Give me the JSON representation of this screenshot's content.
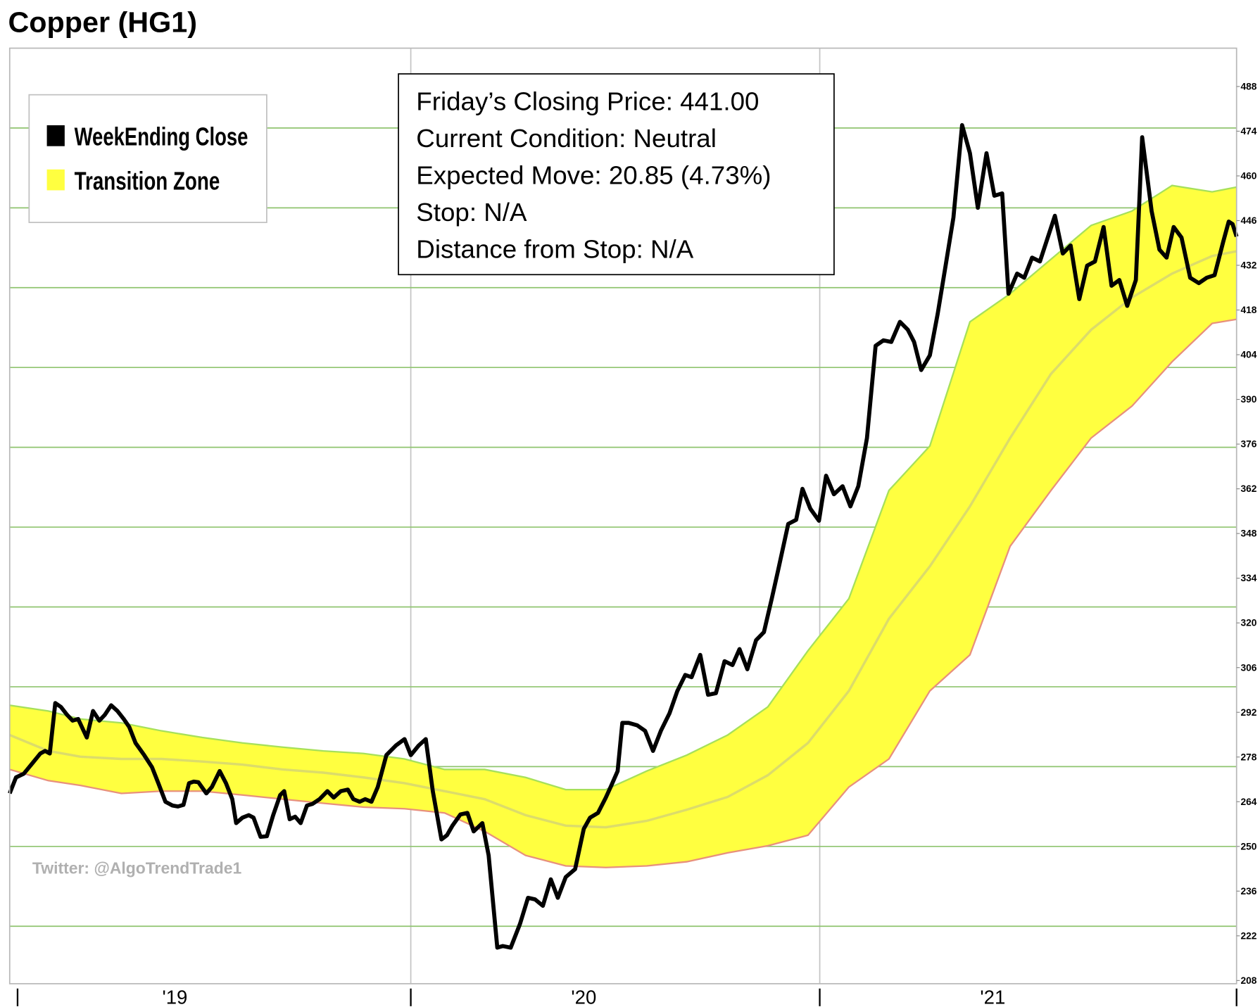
{
  "chart_data": {
    "type": "line",
    "title": "Copper (HG1)",
    "xlim": [
      0,
      156
    ],
    "ylim": [
      207,
      500
    ],
    "yticks": [
      208,
      222,
      236,
      250,
      264,
      278,
      292,
      306,
      320,
      334,
      348,
      362,
      376,
      390,
      404,
      418,
      432,
      446,
      460,
      474,
      488
    ],
    "ygrid": [
      225,
      250,
      275,
      300,
      325,
      350,
      375,
      400,
      425,
      450,
      475
    ],
    "grid_color": "#8fc46f",
    "xticks": [
      {
        "value": 21,
        "label": "'19"
      },
      {
        "value": 73,
        "label": "'20"
      },
      {
        "value": 125,
        "label": "'21"
      }
    ],
    "xgrid": [
      51,
      103
    ],
    "xtickmarks": [
      1,
      51,
      103,
      156
    ],
    "series": [
      {
        "name": "WeekEnding Close",
        "color": "#000000",
        "x": [
          0,
          0.8,
          1.8,
          2.9,
          3.9,
          4.5,
          5.1,
          5.8,
          6.5,
          7.3,
          8.0,
          8.7,
          9.8,
          10.6,
          11.4,
          12.1,
          12.9,
          13.7,
          14.5,
          15.2,
          16.0,
          17.1,
          18.1,
          18.9,
          19.8,
          20.7,
          21.4,
          22.1,
          22.8,
          23.4,
          24.0,
          25.0,
          25.7,
          26.7,
          27.5,
          28.3,
          28.8,
          29.6,
          30.4,
          31.0,
          31.9,
          32.7,
          33.5,
          34.4,
          34.9,
          35.6,
          36.3,
          37.0,
          37.8,
          38.5,
          39.4,
          40.4,
          41.2,
          42.1,
          43.0,
          43.7,
          44.5,
          45.2,
          46.0,
          46.8,
          47.9,
          49.1,
          50.2,
          51.0,
          52.0,
          52.9,
          53.8,
          54.9,
          55.6,
          56.3,
          57.3,
          58.2,
          59.0,
          60.1,
          60.9,
          62.0,
          62.7,
          63.7,
          64.9,
          65.9,
          66.8,
          67.8,
          68.8,
          69.7,
          70.7,
          71.9,
          73.0,
          73.8,
          74.8,
          75.8,
          76.5,
          77.3,
          77.9,
          78.7,
          79.8,
          80.8,
          81.8,
          82.8,
          83.9,
          84.9,
          85.9,
          86.7,
          87.8,
          88.8,
          89.8,
          90.9,
          91.9,
          92.8,
          93.8,
          94.9,
          95.9,
          96.9,
          97.7,
          99.0,
          100.0,
          100.8,
          101.8,
          102.9,
          103.8,
          104.8,
          105.9,
          106.9,
          107.9,
          109.0,
          110.1,
          111.1,
          112.1,
          113.2,
          114.2,
          115.0,
          115.9,
          117.0,
          118.0,
          119.0,
          120.0,
          121.1,
          122.1,
          123.1,
          124.2,
          125.2,
          126.2,
          127.0,
          128.1,
          129.0,
          130.0,
          131.0,
          132.9,
          133.9,
          134.9,
          136.0,
          137.0,
          138.0,
          139.1,
          140.1,
          141.1,
          142.1,
          143.2,
          144.0,
          145.2,
          146.2,
          147.1,
          148.0,
          149.0,
          150.1,
          151.2,
          152.2,
          153.2,
          154.3,
          155.0,
          155.5,
          156.0
        ],
        "values": [
          266.6,
          271.6,
          272.8,
          276.1,
          279.1,
          279.9,
          279.1,
          294.9,
          293.7,
          291.2,
          289.4,
          289.9,
          284.1,
          292.4,
          289.4,
          291.2,
          294.2,
          292.4,
          289.9,
          287.4,
          282.4,
          278.6,
          274.8,
          269.8,
          264.0,
          262.8,
          262.5,
          263.0,
          269.8,
          270.3,
          270.1,
          266.6,
          268.6,
          273.6,
          269.8,
          264.8,
          257.3,
          259.0,
          259.8,
          259.0,
          253.0,
          253.2,
          259.8,
          266.1,
          267.3,
          258.5,
          259.3,
          257.3,
          262.8,
          263.3,
          264.8,
          267.3,
          265.3,
          267.3,
          267.8,
          264.8,
          264.0,
          264.8,
          264.0,
          268.6,
          278.6,
          281.6,
          283.6,
          278.6,
          281.6,
          283.6,
          267.3,
          252.2,
          253.5,
          256.5,
          260.0,
          260.5,
          254.7,
          257.3,
          247.2,
          218.3,
          218.8,
          218.3,
          225.8,
          233.9,
          233.4,
          231.4,
          239.7,
          233.9,
          240.4,
          242.9,
          255.5,
          259.0,
          260.5,
          265.3,
          269.1,
          273.6,
          288.7,
          288.7,
          287.9,
          286.2,
          279.9,
          286.2,
          291.7,
          298.7,
          303.7,
          303.0,
          310.0,
          297.5,
          298.0,
          308.0,
          306.8,
          311.8,
          305.5,
          314.6,
          317.1,
          327.6,
          336.4,
          351.0,
          352.3,
          362.0,
          355.8,
          352.0,
          366.1,
          360.3,
          362.8,
          356.5,
          362.8,
          377.9,
          406.8,
          408.5,
          408.0,
          414.3,
          411.8,
          408.0,
          399.2,
          403.8,
          416.8,
          431.9,
          447.0,
          475.9,
          467.1,
          450.0,
          467.1,
          453.8,
          454.5,
          423.1,
          429.4,
          428.1,
          434.4,
          433.2,
          447.5,
          435.7,
          438.2,
          421.4,
          431.9,
          433.2,
          444.0,
          425.6,
          427.4,
          419.3,
          427.4,
          472.1,
          449.0,
          436.9,
          434.4,
          444.0,
          440.7,
          428.1,
          426.4,
          428.1,
          428.9,
          439.4,
          445.7,
          444.9,
          441.0
        ]
      },
      {
        "name": "Transition Zone",
        "type": "band",
        "color": "#ffff40",
        "upper_color": "#a6e05a",
        "lower_color": "#e8907c",
        "middle_color": "#dcdc6a",
        "x": [
          0,
          4.9,
          9.0,
          14.2,
          19.3,
          24.5,
          29.6,
          34.7,
          39.9,
          45.0,
          50.2,
          55.3,
          60.4,
          65.6,
          70.7,
          75.8,
          81.0,
          86.1,
          91.3,
          96.4,
          101.5,
          106.7,
          111.8,
          117.0,
          122.1,
          127.2,
          132.4,
          137.5,
          142.7,
          147.8,
          152.9,
          156.0
        ],
        "upper": [
          294.2,
          292.4,
          289.9,
          288.7,
          286.2,
          284.1,
          282.4,
          281.1,
          279.9,
          279.1,
          277.4,
          274.1,
          274.1,
          271.6,
          267.8,
          267.8,
          273.6,
          278.6,
          284.9,
          293.7,
          311.3,
          327.6,
          361.5,
          375.4,
          414.3,
          423.1,
          433.9,
          444.5,
          449.0,
          457.0,
          455.0,
          456.5
        ],
        "lower": [
          274.1,
          270.6,
          269.1,
          266.6,
          267.3,
          267.3,
          266.1,
          264.8,
          263.5,
          262.3,
          261.8,
          260.5,
          254.7,
          247.2,
          243.9,
          243.4,
          243.9,
          245.2,
          248.0,
          250.2,
          253.5,
          268.6,
          277.4,
          298.7,
          310.0,
          344.0,
          361.5,
          377.9,
          387.9,
          401.8,
          413.8,
          415.1
        ],
        "middle": [
          284.9,
          279.9,
          278.1,
          277.4,
          277.4,
          276.6,
          275.6,
          274.1,
          273.1,
          271.6,
          269.8,
          267.3,
          264.8,
          259.8,
          256.5,
          256.0,
          258.0,
          261.5,
          265.5,
          272.3,
          282.4,
          298.7,
          321.3,
          337.7,
          356.5,
          377.9,
          398.0,
          411.8,
          421.9,
          429.4,
          434.9,
          436.4
        ]
      }
    ],
    "annotations": [
      "Friday’s Closing Price: 441.00",
      "Current Condition: Neutral",
      "Expected Move: 20.85 (4.73%)",
      "Stop: N/A",
      "Distance from Stop: N/A"
    ],
    "watermark": "Twitter: @AlgoTrendTrade1"
  }
}
